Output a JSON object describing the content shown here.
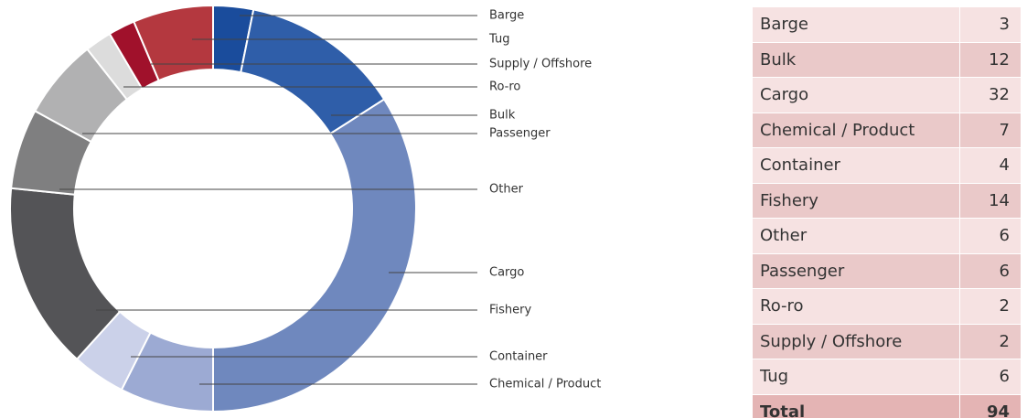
{
  "chart_data": {
    "type": "donut",
    "categories": [
      "Barge",
      "Bulk",
      "Cargo",
      "Chemical / Product",
      "Container",
      "Fishery",
      "Other",
      "Passenger",
      "Ro-ro",
      "Supply / Offshore",
      "Tug"
    ],
    "values": [
      3,
      12,
      32,
      7,
      4,
      14,
      6,
      6,
      2,
      2,
      6
    ],
    "colors": [
      "#1a4c9c",
      "#2f5ea9",
      "#6f88be",
      "#9caad3",
      "#cbd1e9",
      "#545457",
      "#7f7f80",
      "#b1b1b2",
      "#dcdcdc",
      "#a0112b",
      "#b4383f"
    ],
    "total_label": "Total",
    "total": 94
  }
}
